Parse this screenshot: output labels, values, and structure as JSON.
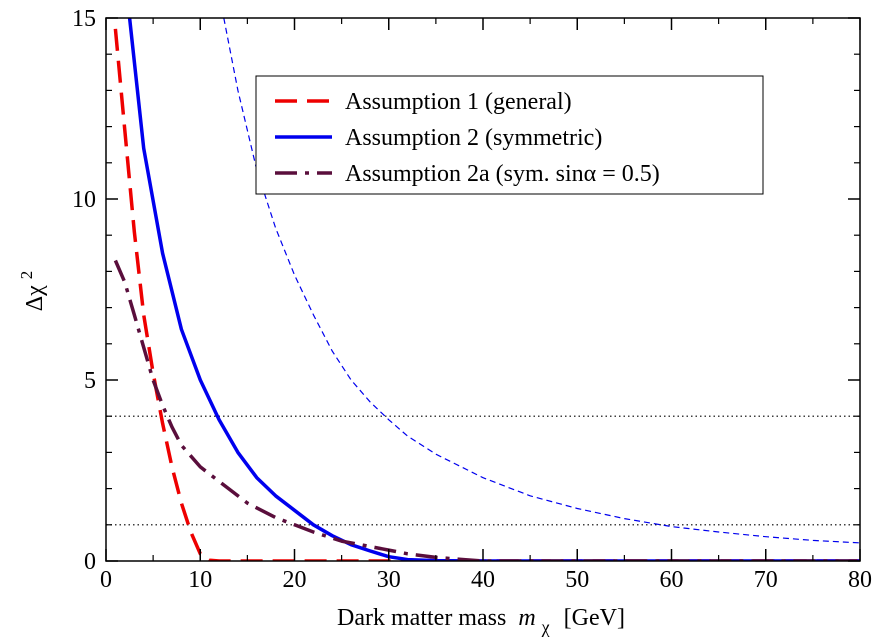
{
  "chart_data": {
    "type": "line",
    "xlabel": "Dark matter mass",
    "xlabel_symbol": "m",
    "xlabel_subscript": "χ",
    "xlabel_unit": "[GeV]",
    "ylabel": "Δχ",
    "ylabel_superscript": "2",
    "xlim": [
      0,
      80
    ],
    "ylim": [
      0,
      15
    ],
    "xticks": [
      "0",
      "10",
      "20",
      "30",
      "40",
      "50",
      "60",
      "70",
      "80"
    ],
    "yticks": [
      "0",
      "5",
      "10",
      "15"
    ],
    "grid": false,
    "legend_placement": "top-center",
    "reference_lines": [
      1,
      4
    ],
    "series": [
      {
        "name": "Assumption 1 (general)",
        "style": "dashed",
        "color": "#ee0000",
        "in_legend": true,
        "x": [
          1,
          2,
          3,
          4,
          5,
          6,
          7,
          8,
          9,
          10,
          11,
          12,
          15,
          20,
          30,
          40,
          50,
          60,
          70,
          80
        ],
        "y": [
          14.7,
          11.9,
          9.1,
          6.8,
          5.2,
          3.8,
          2.6,
          1.6,
          0.8,
          0.2,
          0.02,
          0.0,
          0.0,
          0.0,
          0.0,
          0.0,
          0.0,
          0.0,
          0.0,
          0.0
        ]
      },
      {
        "name": "Assumption 2 (symmetric)",
        "style": "solid",
        "color": "#0000ee",
        "in_legend": true,
        "x": [
          2.5,
          4,
          6,
          8,
          10,
          12,
          14,
          16,
          18,
          20,
          22,
          24,
          26,
          28,
          30,
          32,
          35,
          40,
          50,
          60,
          70,
          80
        ],
        "y": [
          15,
          11.4,
          8.5,
          6.4,
          5.0,
          3.9,
          3.0,
          2.3,
          1.8,
          1.4,
          1.0,
          0.7,
          0.45,
          0.28,
          0.12,
          0.04,
          0.01,
          0.0,
          0.0,
          0.0,
          0.0,
          0.0
        ]
      },
      {
        "name": "Assumption 2a (sym. sinα = 0.5)",
        "style": "dash-dot",
        "color": "#5a0e3c",
        "in_legend": true,
        "x": [
          1,
          2,
          3,
          4,
          5,
          6,
          7,
          8,
          10,
          12,
          15,
          18,
          20,
          22,
          25,
          28,
          30,
          32,
          35,
          38,
          40,
          50,
          60,
          70,
          80
        ],
        "y": [
          8.3,
          7.7,
          6.8,
          5.9,
          5.0,
          4.3,
          3.7,
          3.2,
          2.6,
          2.2,
          1.6,
          1.2,
          1.0,
          0.8,
          0.55,
          0.4,
          0.3,
          0.2,
          0.1,
          0.04,
          0.0,
          0.0,
          0.0,
          0.0,
          0.0
        ]
      },
      {
        "name": "",
        "style": "thin-dashed",
        "color": "#0000ee",
        "in_legend": false,
        "x": [
          12.5,
          14,
          16,
          18,
          20,
          22,
          24,
          26,
          28,
          30,
          32,
          35,
          40,
          45,
          50,
          55,
          60,
          65,
          70,
          75,
          80
        ],
        "y": [
          15,
          13.0,
          10.8,
          9.2,
          7.9,
          6.8,
          5.8,
          5.0,
          4.4,
          3.9,
          3.45,
          2.95,
          2.3,
          1.8,
          1.45,
          1.17,
          0.95,
          0.8,
          0.67,
          0.57,
          0.5
        ]
      }
    ]
  }
}
